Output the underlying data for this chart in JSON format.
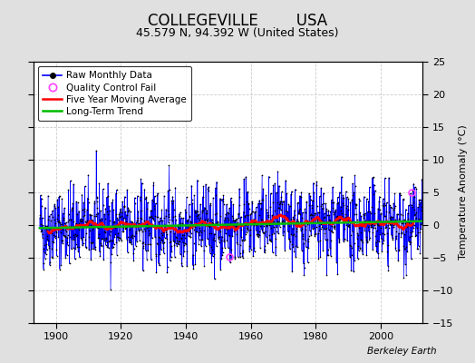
{
  "title": "COLLEGEVILLE        USA",
  "subtitle": "45.579 N, 94.392 W (United States)",
  "ylabel_right": "Temperature Anomaly (°C)",
  "xlim": [
    1893,
    2013
  ],
  "ylim": [
    -15,
    25
  ],
  "yticks": [
    -15,
    -10,
    -5,
    0,
    5,
    10,
    15,
    20,
    25
  ],
  "xticks": [
    1900,
    1920,
    1940,
    1960,
    1980,
    2000
  ],
  "year_start": 1895,
  "year_end": 2012,
  "background_color": "#e0e0e0",
  "plot_bg_color": "#ffffff",
  "raw_line_color": "#0000ff",
  "raw_dot_color": "#000000",
  "moving_avg_color": "#ff0000",
  "trend_color": "#00bb00",
  "qc_fail_color": "#ff44ff",
  "annotation": "Berkeley Earth",
  "seed": 42,
  "noise_std": 3.0,
  "qc_fail_points": [
    [
      1953.5,
      -4.8
    ],
    [
      2009.5,
      5.0
    ]
  ],
  "title_fontsize": 12,
  "subtitle_fontsize": 9,
  "legend_fontsize": 7.5,
  "tick_labelsize": 8
}
